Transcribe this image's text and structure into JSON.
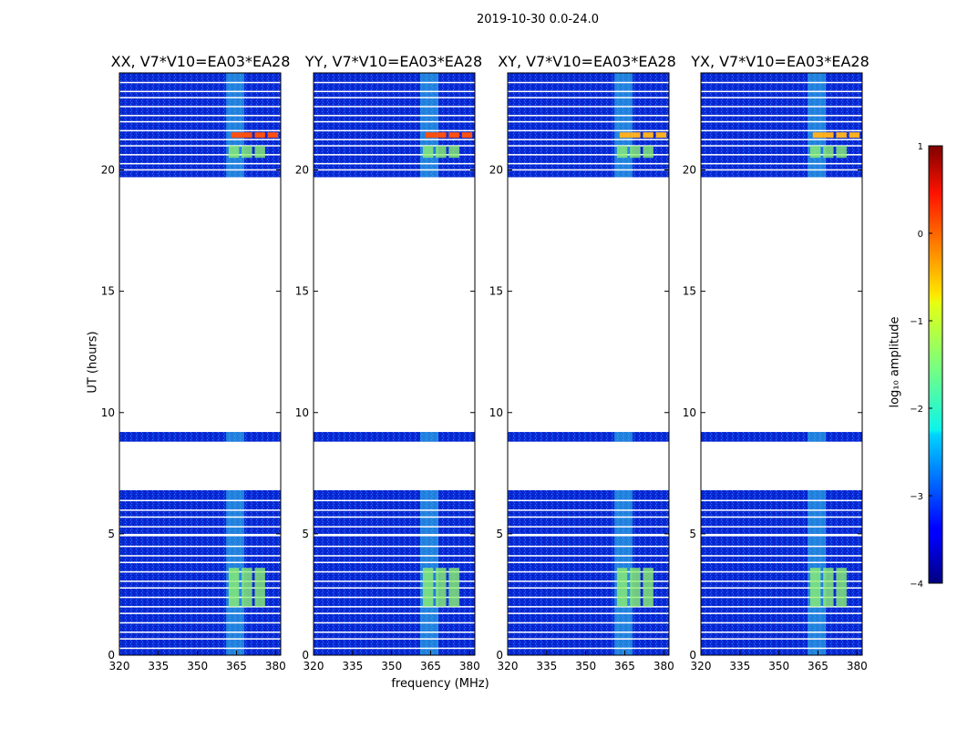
{
  "chart_data": {
    "type": "heatmap",
    "suptitle": "2019-10-30 0.0-24.0",
    "xlabel": "frequency (MHz)",
    "ylabel": "UT (hours)",
    "colorbar_label": "log₁₀ amplitude",
    "colorbar_ticks": [
      "1",
      "0",
      "−1",
      "−2",
      "−3",
      "−4"
    ],
    "colorbar_range": [
      -4,
      1
    ],
    "xlim": [
      320,
      382
    ],
    "ylim": [
      0,
      24
    ],
    "x_ticks": [
      "320",
      "335",
      "350",
      "365",
      "380"
    ],
    "y_ticks": [
      "0",
      "5",
      "10",
      "15",
      "20"
    ],
    "panels": [
      {
        "title": "XX, V7*V10=EA03*EA28"
      },
      {
        "title": "YY, V7*V10=EA03*EA28"
      },
      {
        "title": "XY, V7*V10=EA03*EA28"
      },
      {
        "title": "YX, V7*V10=EA03*EA28"
      }
    ],
    "data_blocks_ut_hours": [
      [
        0,
        4.9
      ],
      [
        5.0,
        6.8
      ],
      [
        8.8,
        9.2
      ],
      [
        19.7,
        24.0
      ]
    ],
    "rfi_frequency_range_mhz": [
      361,
      368
    ],
    "colors": {
      "background": "#0a2ad8",
      "frame": "#000000"
    }
  }
}
